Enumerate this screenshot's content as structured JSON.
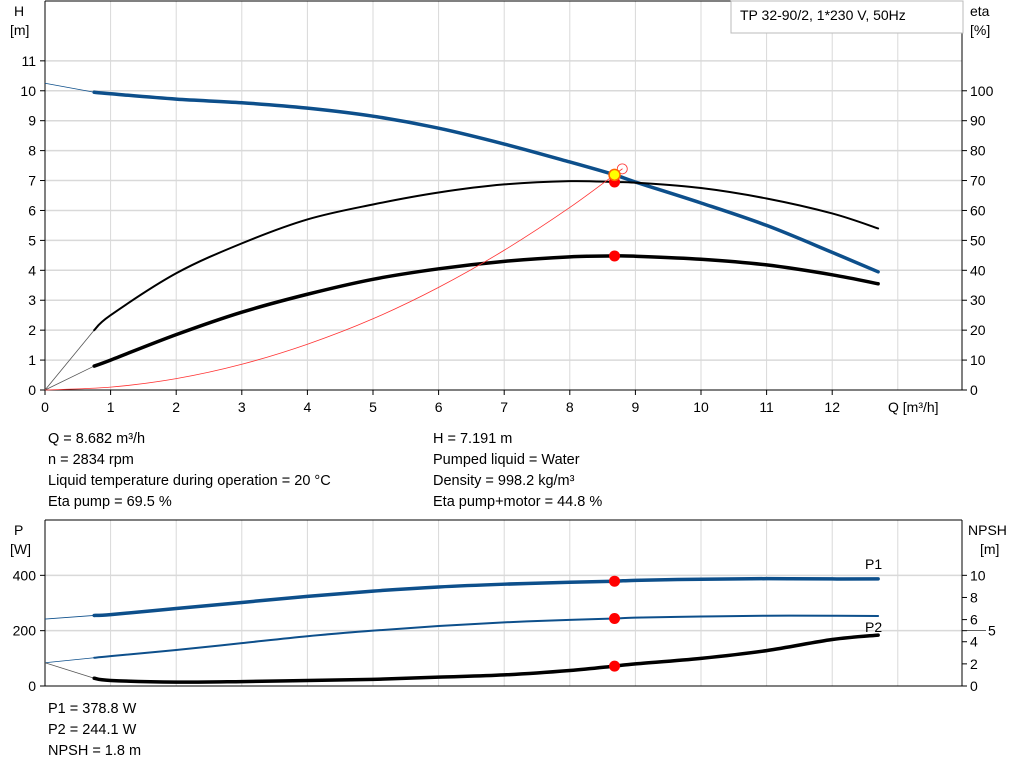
{
  "chart_data": [
    {
      "type": "line",
      "legend_box": "TP 32-90/2, 1*230 V, 50Hz",
      "xlabel": "Q [m³/h]",
      "ylabel_left": [
        "H",
        "[m]"
      ],
      "ylabel_right": [
        "eta",
        "[%]"
      ],
      "xlim": [
        0,
        13.7
      ],
      "ylim_left": [
        0,
        13
      ],
      "ylim_right": [
        0,
        130
      ],
      "x_ticks": [
        0,
        1,
        2,
        3,
        4,
        5,
        6,
        7,
        8,
        9,
        10,
        11,
        12
      ],
      "y_ticks_left": [
        0,
        1,
        2,
        3,
        4,
        5,
        6,
        7,
        8,
        9,
        10,
        11
      ],
      "y_ticks_right": [
        0,
        10,
        20,
        30,
        40,
        50,
        60,
        70,
        80,
        90,
        100
      ],
      "grid": true,
      "series": [
        {
          "key": "H",
          "axis": "left",
          "color": "#0d4f8b",
          "x": [
            0.75,
            1,
            2,
            3,
            4,
            5,
            6,
            7,
            8,
            8.682,
            9,
            10,
            11,
            12,
            12.7
          ],
          "y": [
            9.95,
            9.9,
            9.72,
            9.6,
            9.42,
            9.15,
            8.75,
            8.22,
            7.62,
            7.191,
            6.95,
            6.25,
            5.5,
            4.6,
            3.95
          ],
          "extension": {
            "x": [
              0,
              0.75
            ],
            "y": [
              10.25,
              9.95
            ]
          }
        },
        {
          "key": "eta_pump",
          "axis": "right",
          "color": "#000000",
          "x": [
            0.75,
            1,
            2,
            3,
            4,
            5,
            6,
            7,
            8,
            8.682,
            9,
            10,
            11,
            12,
            12.7
          ],
          "y": [
            20,
            25,
            39,
            49,
            57,
            62,
            66,
            68.7,
            69.8,
            69.5,
            69.3,
            67.5,
            64,
            59,
            54
          ],
          "extension": {
            "x": [
              0,
              0.75
            ],
            "y": [
              0,
              20
            ]
          }
        },
        {
          "key": "eta_total",
          "axis": "right",
          "color": "#000000",
          "x": [
            0.75,
            1,
            2,
            3,
            4,
            5,
            6,
            7,
            8,
            8.682,
            9,
            10,
            11,
            12,
            12.7
          ],
          "y": [
            8,
            10,
            18.5,
            26,
            32,
            37,
            40.5,
            43,
            44.5,
            44.8,
            44.7,
            43.7,
            41.8,
            38.5,
            35.5
          ],
          "extension": {
            "x": [
              0,
              0.75
            ],
            "y": [
              0,
              8
            ]
          }
        },
        {
          "key": "system",
          "axis": "left",
          "color": "#ff3333",
          "x": [
            0,
            1,
            2,
            3,
            4,
            5,
            6,
            7,
            8,
            8.8
          ],
          "y": [
            0,
            0.095,
            0.38,
            0.86,
            1.53,
            2.38,
            3.43,
            4.67,
            6.1,
            7.39
          ]
        }
      ],
      "duty_point": {
        "Q": 8.682,
        "H": 7.191,
        "eta_pump": 69.5,
        "eta_total": 44.8
      }
    },
    {
      "type": "line",
      "ylabel_left": [
        "P",
        "[W]"
      ],
      "ylabel_right": [
        "NPSH",
        "[m]"
      ],
      "xlim": [
        0,
        13.7
      ],
      "ylim_left": [
        0,
        600
      ],
      "ylim_right": [
        0,
        15
      ],
      "y_ticks_left": [
        0,
        200,
        400
      ],
      "y_ticks_right": [
        0,
        2,
        4,
        5,
        6,
        8,
        10
      ],
      "grid": true,
      "series": [
        {
          "name": "P1",
          "axis": "left",
          "color": "#0d4f8b",
          "x": [
            0.75,
            1,
            2,
            3,
            4,
            5,
            6,
            7,
            8,
            8.682,
            9,
            10,
            11,
            12,
            12.7
          ],
          "y": [
            255,
            258,
            280,
            302,
            324,
            343,
            358,
            368,
            375,
            378.8,
            382,
            386,
            388,
            387,
            387
          ],
          "extension": {
            "x": [
              0,
              0.75
            ],
            "y": [
              242,
              255
            ]
          }
        },
        {
          "name": "P2",
          "axis": "left",
          "color": "#0d4f8b",
          "x": [
            0.75,
            1,
            2,
            3,
            4,
            5,
            6,
            7,
            8,
            8.682,
            9,
            10,
            11,
            12,
            12.7
          ],
          "y": [
            102,
            108,
            130,
            155,
            180,
            200,
            217,
            230,
            239,
            244.1,
            247,
            251,
            254,
            254,
            253
          ],
          "extension": {
            "x": [
              0,
              0.75
            ],
            "y": [
              84,
              102
            ]
          }
        },
        {
          "key": "NPSH",
          "axis": "right",
          "color": "#000000",
          "x": [
            0.75,
            1,
            2,
            3,
            4,
            5,
            6,
            7,
            8,
            8.682,
            9,
            10,
            11,
            12,
            12.7
          ],
          "y": [
            0.7,
            0.5,
            0.35,
            0.4,
            0.5,
            0.6,
            0.8,
            1.0,
            1.4,
            1.8,
            2.0,
            2.5,
            3.2,
            4.2,
            4.6
          ],
          "extension": {
            "x": [
              0,
              0.75
            ],
            "y": [
              2.1,
              0.7
            ]
          }
        }
      ],
      "duty_point": {
        "Q": 8.682,
        "P1": 378.8,
        "P2": 244.1,
        "NPSH": 1.8
      }
    }
  ],
  "info": {
    "left": [
      "Q = 8.682 m³/h",
      "n = 2834 rpm",
      "Liquid temperature during operation = 20 °C",
      "Eta pump = 69.5 %"
    ],
    "right": [
      "H = 7.191 m",
      "Pumped liquid = Water",
      "Density = 998.2 kg/m³",
      "Eta pump+motor = 44.8 %"
    ],
    "bottom": [
      "P1 = 378.8 W",
      "P2 = 244.1 W",
      "NPSH = 1.8 m"
    ]
  },
  "colors": {
    "head": "#0d4f8b",
    "efficiency": "#000000",
    "system": "#ff3333",
    "duty_point": "#ff0000",
    "highlight": "#ffff00",
    "grid": "#d9d9d9"
  }
}
